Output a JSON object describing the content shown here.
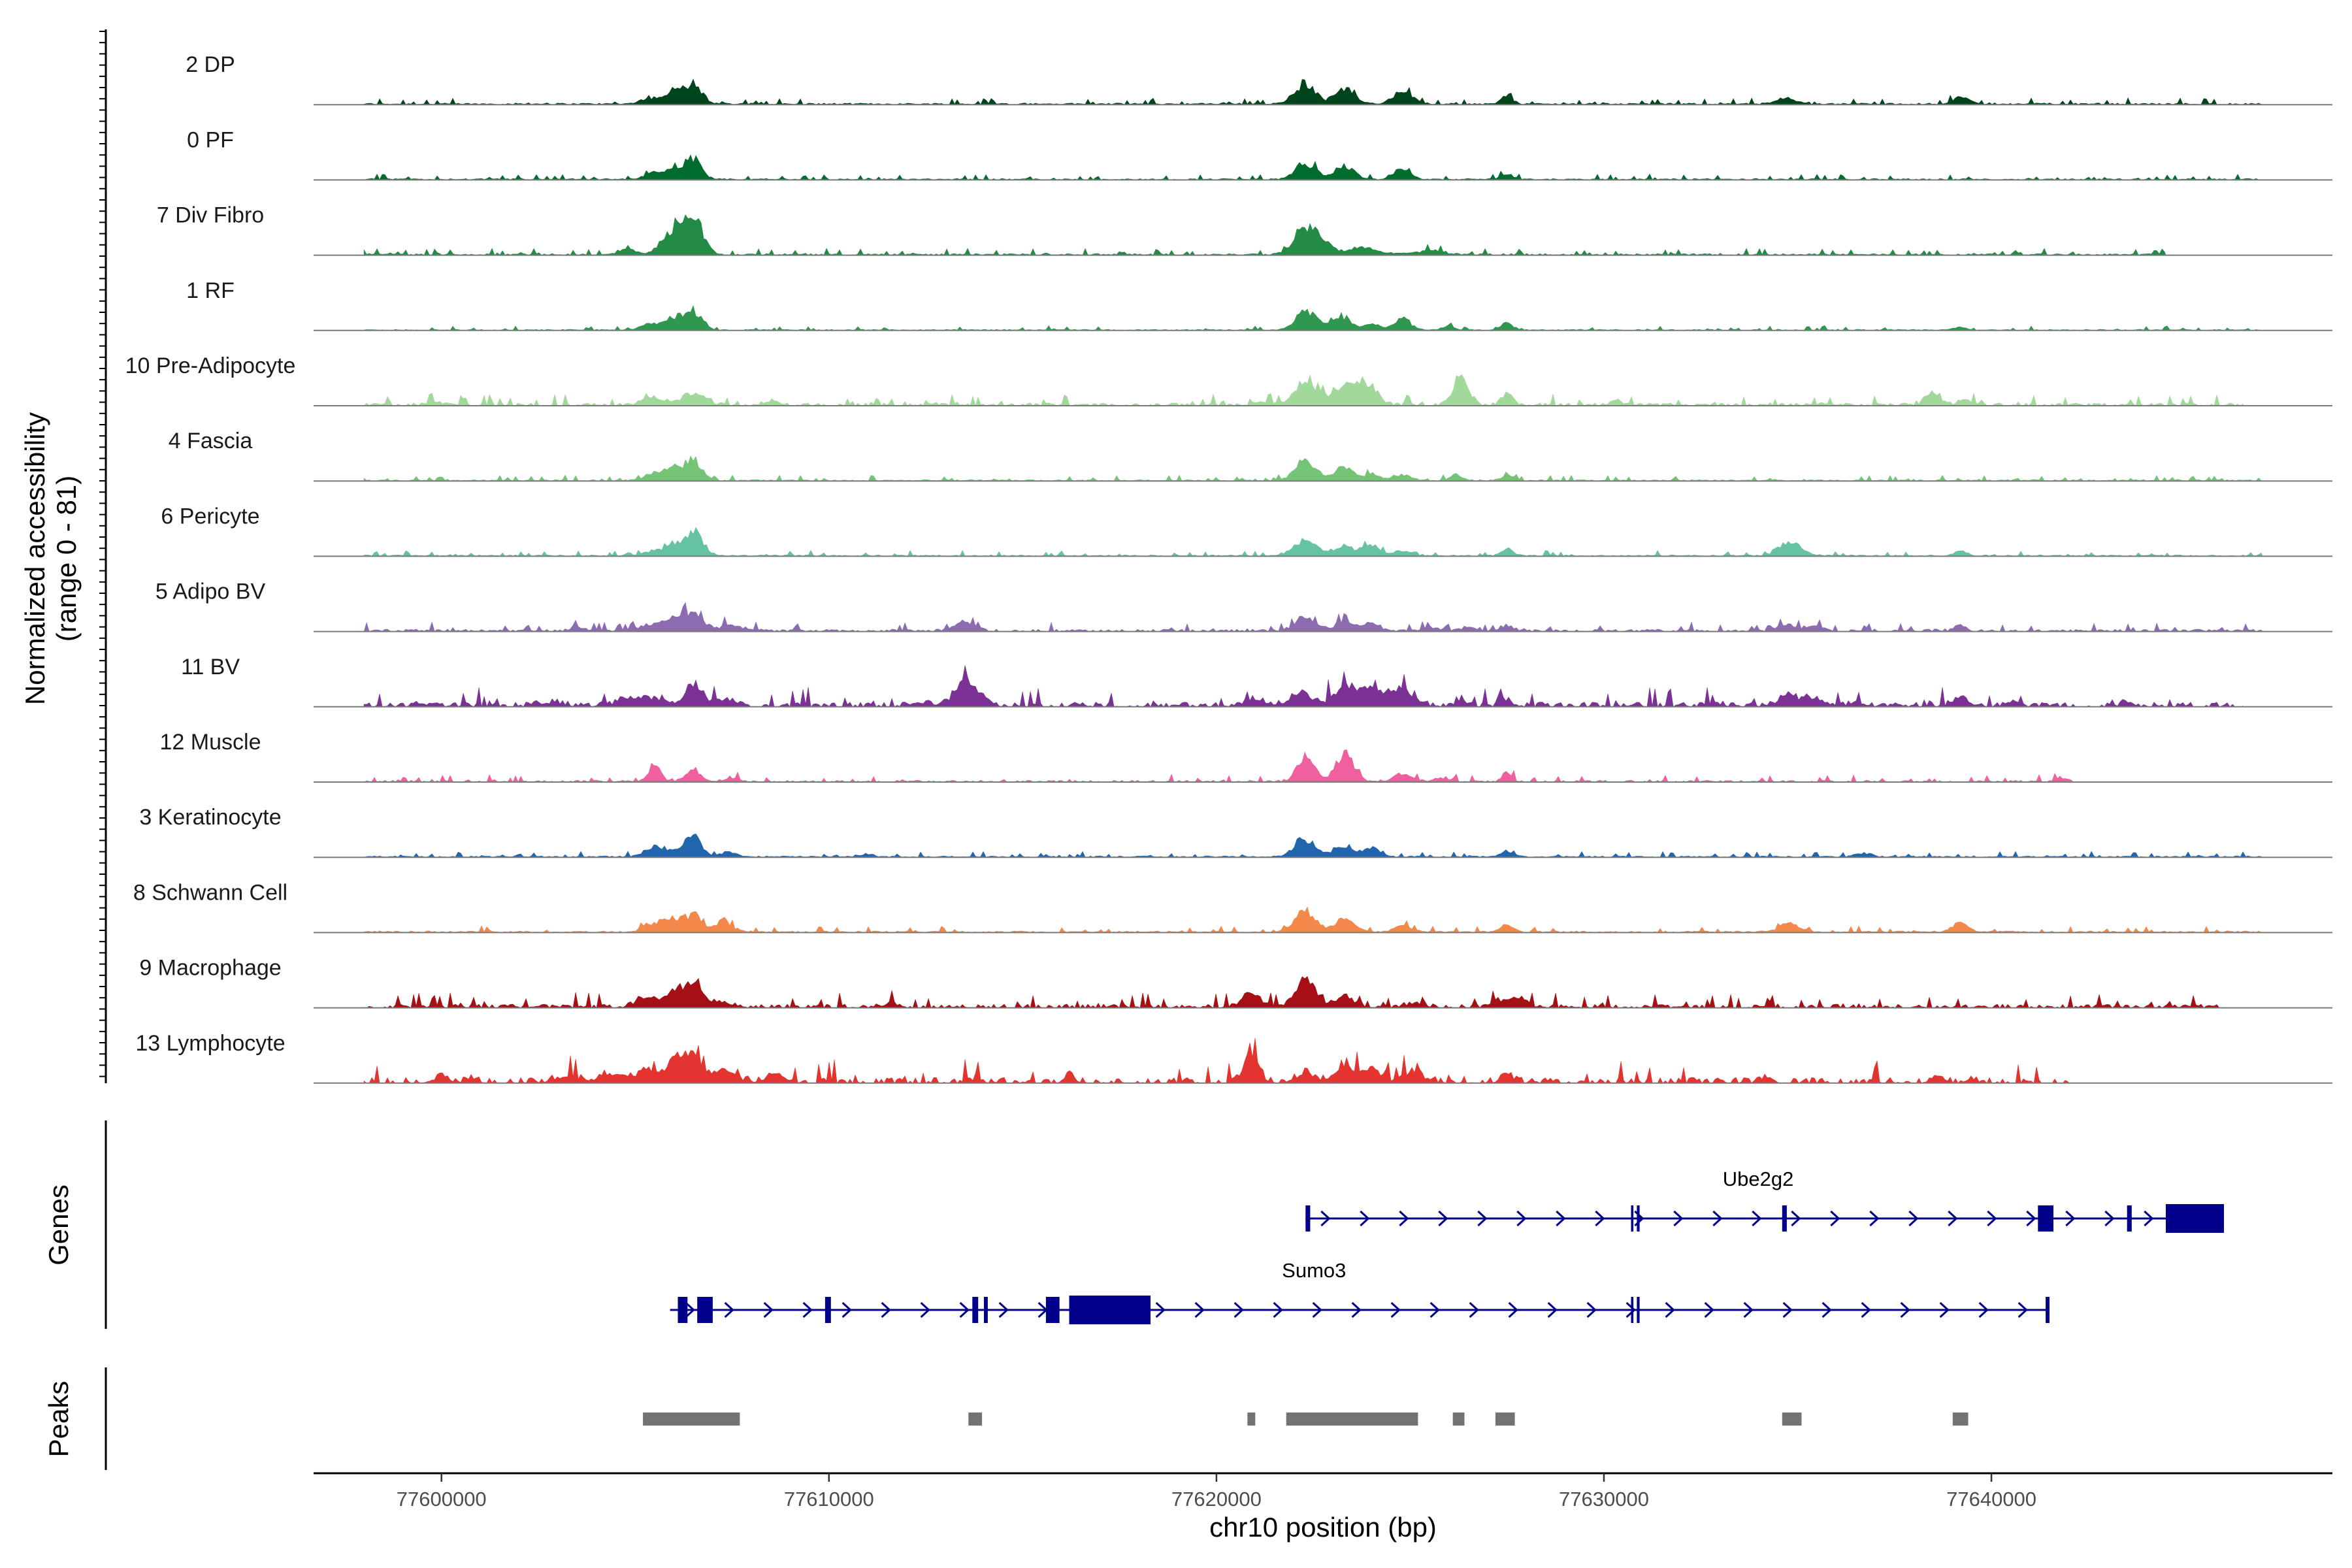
{
  "chart_data": {
    "type": "area",
    "title": "",
    "ylabel_line1": "Normalized accessibility",
    "ylabel_line2": "(range 0 - 81)",
    "xlabel": "chr10 position (bp)",
    "xlim": [
      77596700,
      77648800
    ],
    "ylim": [
      0,
      81
    ],
    "x_ticks": [
      77600000,
      77610000,
      77620000,
      77630000,
      77640000
    ],
    "x_tick_labels": [
      "77600000",
      "77610000",
      "77620000",
      "77630000",
      "77640000"
    ],
    "tracks": [
      {
        "name": "2 DP",
        "color": "#00441b",
        "range": [
          77598000,
          77647000
        ],
        "noise": 0.035,
        "span": 1.0,
        "peaks": [
          [
            77605400,
            6,
            250
          ],
          [
            77606000,
            14,
            200
          ],
          [
            77606500,
            22,
            200
          ],
          [
            77622300,
            20,
            260
          ],
          [
            77623300,
            16,
            250
          ],
          [
            77624800,
            13,
            250
          ],
          [
            77627500,
            8,
            150
          ],
          [
            77634700,
            6,
            250
          ],
          [
            77639200,
            8,
            200
          ]
        ]
      },
      {
        "name": "0 PF",
        "color": "#006d2c",
        "range": [
          77598000,
          77647000
        ],
        "noise": 0.03,
        "span": 1.0,
        "peaks": [
          [
            77605500,
            6,
            250
          ],
          [
            77606000,
            12,
            200
          ],
          [
            77606500,
            21,
            200
          ],
          [
            77622300,
            17,
            250
          ],
          [
            77623300,
            14,
            250
          ],
          [
            77624800,
            11,
            220
          ],
          [
            77627500,
            6,
            150
          ]
        ]
      },
      {
        "name": "7 Div Fibro",
        "color": "#238b45",
        "range": [
          77598000,
          77644500
        ],
        "noise": 0.035,
        "span": 0.97,
        "peaks": [
          [
            77604800,
            5,
            200
          ],
          [
            77606000,
            25,
            300
          ],
          [
            77606500,
            35,
            250
          ],
          [
            77622300,
            26,
            300
          ],
          [
            77622800,
            8,
            300
          ],
          [
            77623800,
            7,
            300
          ],
          [
            77625500,
            4,
            400
          ]
        ]
      },
      {
        "name": "1 RF",
        "color": "#2f974e",
        "range": [
          77598000,
          77647000
        ],
        "noise": 0.025,
        "span": 1.0,
        "peaks": [
          [
            77605400,
            6,
            250
          ],
          [
            77606000,
            12,
            200
          ],
          [
            77606500,
            20,
            220
          ],
          [
            77622300,
            20,
            250
          ],
          [
            77623200,
            15,
            250
          ],
          [
            77624000,
            7,
            200
          ],
          [
            77624800,
            11,
            220
          ],
          [
            77626000,
            4,
            150
          ],
          [
            77627500,
            7,
            150
          ],
          [
            77639200,
            3,
            150
          ]
        ]
      },
      {
        "name": "10 Pre-Adipocyte",
        "color": "#a1d99b",
        "range": [
          77598000,
          77646500
        ],
        "noise": 0.06,
        "span": 0.8,
        "peaks": [
          [
            77599800,
            3,
            200
          ],
          [
            77605500,
            7,
            300
          ],
          [
            77606500,
            12,
            300
          ],
          [
            77608500,
            3,
            200
          ],
          [
            77621200,
            4,
            150
          ],
          [
            77622300,
            22,
            300
          ],
          [
            77623300,
            18,
            300
          ],
          [
            77623900,
            20,
            250
          ],
          [
            77626300,
            26,
            200
          ],
          [
            77627500,
            12,
            150
          ],
          [
            77630300,
            6,
            150
          ],
          [
            77638500,
            12,
            200
          ],
          [
            77639300,
            6,
            150
          ]
        ]
      },
      {
        "name": "4 Fascia",
        "color": "#74c476",
        "range": [
          77598000,
          77647000
        ],
        "noise": 0.03,
        "span": 1.0,
        "peaks": [
          [
            77605500,
            7,
            250
          ],
          [
            77606000,
            12,
            200
          ],
          [
            77606500,
            20,
            220
          ],
          [
            77622300,
            18,
            280
          ],
          [
            77623300,
            13,
            250
          ],
          [
            77624000,
            6,
            200
          ],
          [
            77624800,
            6,
            220
          ],
          [
            77626200,
            6,
            150
          ],
          [
            77627500,
            5,
            150
          ]
        ]
      },
      {
        "name": "6 Pericyte",
        "color": "#66c2a4",
        "range": [
          77598000,
          77647000
        ],
        "noise": 0.03,
        "span": 1.0,
        "peaks": [
          [
            77605500,
            5,
            250
          ],
          [
            77606000,
            10,
            200
          ],
          [
            77606500,
            24,
            250
          ],
          [
            77622300,
            17,
            280
          ],
          [
            77623300,
            10,
            250
          ],
          [
            77624000,
            11,
            200
          ],
          [
            77624800,
            5,
            220
          ],
          [
            77627500,
            7,
            150
          ],
          [
            77634800,
            14,
            300
          ],
          [
            77639200,
            5,
            150
          ]
        ]
      },
      {
        "name": "5 Adipo BV",
        "color": "#8c6bb1",
        "range": [
          77598000,
          77647000
        ],
        "noise": 0.05,
        "span": 0.9,
        "peaks": [
          [
            77603500,
            3,
            200
          ],
          [
            77605500,
            6,
            300
          ],
          [
            77606000,
            10,
            250
          ],
          [
            77606500,
            19,
            250
          ],
          [
            77607500,
            6,
            300
          ],
          [
            77613500,
            10,
            250
          ],
          [
            77622300,
            14,
            250
          ],
          [
            77623300,
            9,
            250
          ],
          [
            77624000,
            8,
            200
          ],
          [
            77625500,
            4,
            200
          ],
          [
            77626500,
            4,
            150
          ],
          [
            77627500,
            6,
            150
          ],
          [
            77634700,
            6,
            250
          ],
          [
            77635500,
            4,
            200
          ],
          [
            77639200,
            5,
            150
          ]
        ]
      },
      {
        "name": "11 BV",
        "color": "#7b3294",
        "range": [
          77598000,
          77646500
        ],
        "noise": 0.1,
        "span": 0.8,
        "peaks": [
          [
            77599500,
            3,
            150
          ],
          [
            77602500,
            3,
            150
          ],
          [
            77603000,
            4,
            200
          ],
          [
            77604800,
            6,
            300
          ],
          [
            77605500,
            8,
            300
          ],
          [
            77606500,
            22,
            200
          ],
          [
            77607200,
            7,
            300
          ],
          [
            77612500,
            4,
            200
          ],
          [
            77613500,
            26,
            250
          ],
          [
            77614000,
            5,
            200
          ],
          [
            77621000,
            6,
            300
          ],
          [
            77622200,
            14,
            300
          ],
          [
            77623300,
            22,
            250
          ],
          [
            77624000,
            18,
            250
          ],
          [
            77624800,
            16,
            300
          ],
          [
            77626300,
            4,
            200
          ],
          [
            77627500,
            6,
            150
          ],
          [
            77632800,
            4,
            200
          ],
          [
            77634800,
            12,
            250
          ],
          [
            77635500,
            8,
            250
          ],
          [
            77636500,
            4,
            200
          ],
          [
            77639200,
            8,
            200
          ],
          [
            77640500,
            3,
            150
          ],
          [
            77643500,
            4,
            150
          ]
        ]
      },
      {
        "name": "12 Muscle",
        "color": "#f0609e",
        "range": [
          77598000,
          77642500
        ],
        "noise": 0.04,
        "span": 0.7,
        "peaks": [
          [
            77605500,
            18,
            150
          ],
          [
            77606500,
            12,
            200
          ],
          [
            77607500,
            4,
            200
          ],
          [
            77622300,
            26,
            220
          ],
          [
            77623300,
            28,
            230
          ],
          [
            77624800,
            9,
            220
          ],
          [
            77625800,
            4,
            200
          ],
          [
            77627500,
            11,
            120
          ],
          [
            77641800,
            4,
            150
          ]
        ]
      },
      {
        "name": "3 Keratinocyte",
        "color": "#2166ac",
        "range": [
          77598000,
          77647000
        ],
        "noise": 0.03,
        "span": 1.0,
        "peaks": [
          [
            77605500,
            10,
            250
          ],
          [
            77606000,
            5,
            200
          ],
          [
            77606500,
            21,
            200
          ],
          [
            77607400,
            5,
            200
          ],
          [
            77611000,
            3,
            150
          ],
          [
            77622300,
            17,
            280
          ],
          [
            77623300,
            11,
            250
          ],
          [
            77624000,
            9,
            200
          ],
          [
            77627500,
            6,
            150
          ],
          [
            77636700,
            4,
            200
          ]
        ]
      },
      {
        "name": "8 Schwann Cell",
        "color": "#f4884a",
        "range": [
          77598000,
          77647000
        ],
        "noise": 0.035,
        "span": 1.0,
        "peaks": [
          [
            77605500,
            10,
            250
          ],
          [
            77606000,
            11,
            200
          ],
          [
            77606500,
            17,
            220
          ],
          [
            77607300,
            8,
            250
          ],
          [
            77622300,
            21,
            280
          ],
          [
            77623300,
            12,
            250
          ],
          [
            77624800,
            7,
            220
          ],
          [
            77627500,
            8,
            150
          ],
          [
            77634800,
            9,
            250
          ],
          [
            77639200,
            9,
            200
          ]
        ]
      },
      {
        "name": "9 Macrophage",
        "color": "#a50f15",
        "range": [
          77598000,
          77646000
        ],
        "noise": 0.08,
        "span": 0.8,
        "peaks": [
          [
            77605300,
            10,
            250
          ],
          [
            77606000,
            17,
            200
          ],
          [
            77606500,
            26,
            220
          ],
          [
            77607300,
            5,
            250
          ],
          [
            77611500,
            3,
            200
          ],
          [
            77620900,
            12,
            250
          ],
          [
            77622300,
            28,
            250
          ],
          [
            77623300,
            10,
            250
          ],
          [
            77625200,
            4,
            200
          ],
          [
            77627300,
            7,
            200
          ],
          [
            77627800,
            10,
            200
          ]
        ]
      },
      {
        "name": "13 Lymphocyte",
        "color": "#e3342f",
        "range": [
          77598000,
          77642000
        ],
        "noise": 0.12,
        "span": 0.6,
        "peaks": [
          [
            77600000,
            6,
            200
          ],
          [
            77600800,
            4,
            150
          ],
          [
            77603200,
            6,
            300
          ],
          [
            77604400,
            10,
            300
          ],
          [
            77605300,
            15,
            250
          ],
          [
            77606000,
            22,
            200
          ],
          [
            77606500,
            30,
            250
          ],
          [
            77607300,
            12,
            300
          ],
          [
            77608600,
            8,
            250
          ],
          [
            77613800,
            4,
            150
          ],
          [
            77616200,
            10,
            120
          ],
          [
            77620900,
            32,
            180
          ],
          [
            77622300,
            10,
            250
          ],
          [
            77623300,
            16,
            250
          ],
          [
            77624000,
            14,
            200
          ],
          [
            77625000,
            10,
            300
          ],
          [
            77627500,
            10,
            150
          ],
          [
            77634200,
            5,
            150
          ],
          [
            77638600,
            8,
            150
          ],
          [
            77639500,
            4,
            150
          ]
        ]
      }
    ],
    "genes": [
      {
        "name": "Ube2g2",
        "start": 77622300,
        "end": 77646000,
        "strand": "+",
        "exons": [
          [
            77622300,
            77622420
          ],
          [
            77630700,
            77630760
          ],
          [
            77630850,
            77630920
          ],
          [
            77634600,
            77634720
          ],
          [
            77641200,
            77641600
          ],
          [
            77643500,
            77643620
          ],
          [
            77644500,
            77646000
          ]
        ]
      },
      {
        "name": "Sumo3",
        "start": 77605900,
        "end": 77641500,
        "strand": "+",
        "exons": [
          [
            77606100,
            77606350
          ],
          [
            77606600,
            77607000
          ],
          [
            77609900,
            77610050
          ],
          [
            77613700,
            77613850
          ],
          [
            77614000,
            77614100
          ],
          [
            77615600,
            77615950
          ],
          [
            77616200,
            77618300
          ],
          [
            77630700,
            77630760
          ],
          [
            77630850,
            77630920
          ],
          [
            77641400,
            77641500
          ]
        ]
      }
    ],
    "genes_label": "Genes",
    "peaks_label": "Peaks",
    "peak_regions": [
      [
        77605200,
        77607700
      ],
      [
        77613600,
        77613950
      ],
      [
        77620800,
        77621000
      ],
      [
        77621800,
        77625200
      ],
      [
        77626100,
        77626400
      ],
      [
        77627200,
        77627700
      ],
      [
        77634600,
        77635100
      ],
      [
        77639000,
        77639400
      ]
    ],
    "peak_color": "#737373",
    "gene_color": "#00008b"
  }
}
